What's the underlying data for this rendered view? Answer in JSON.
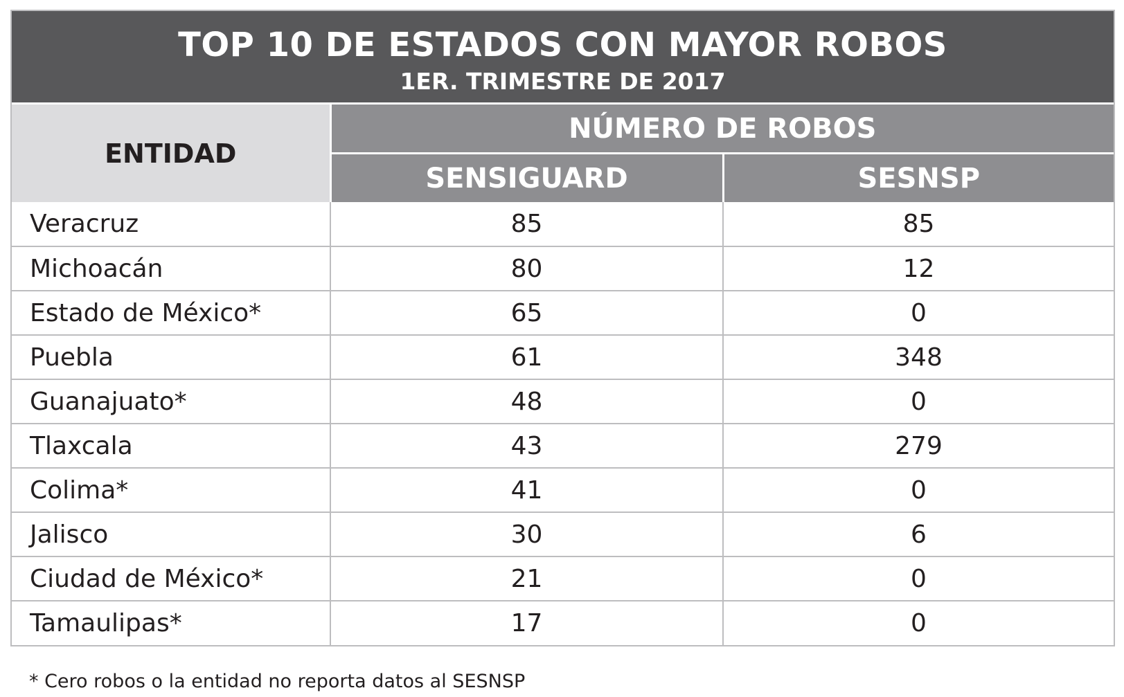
{
  "chart_data": {
    "type": "table",
    "title": "TOP 10 DE ESTADOS CON MAYOR ROBOS",
    "subtitle": "1ER. TRIMESTRE DE 2017",
    "headers": {
      "entity": "ENTIDAD",
      "group": "NÚMERO DE ROBOS",
      "columns": [
        "SENSIGUARD",
        "SESNSP"
      ]
    },
    "rows": [
      {
        "entidad": "Veracruz",
        "sensiguard": "85",
        "sesnsp": "85"
      },
      {
        "entidad": "Michoacán",
        "sensiguard": "80",
        "sesnsp": "12"
      },
      {
        "entidad": "Estado de México*",
        "sensiguard": "65",
        "sesnsp": "0"
      },
      {
        "entidad": "Puebla",
        "sensiguard": "61",
        "sesnsp": "348"
      },
      {
        "entidad": "Guanajuato*",
        "sensiguard": "48",
        "sesnsp": "0"
      },
      {
        "entidad": "Tlaxcala",
        "sensiguard": "43",
        "sesnsp": "279"
      },
      {
        "entidad": "Colima*",
        "sensiguard": "41",
        "sesnsp": "0"
      },
      {
        "entidad": "Jalisco",
        "sensiguard": "30",
        "sesnsp": "6"
      },
      {
        "entidad": "Ciudad de México*",
        "sensiguard": "21",
        "sesnsp": "0"
      },
      {
        "entidad": "Tamaulipas*",
        "sensiguard": "17",
        "sesnsp": "0"
      }
    ],
    "footnote": "* Cero robos o la entidad no reporta datos al SESNSP"
  }
}
